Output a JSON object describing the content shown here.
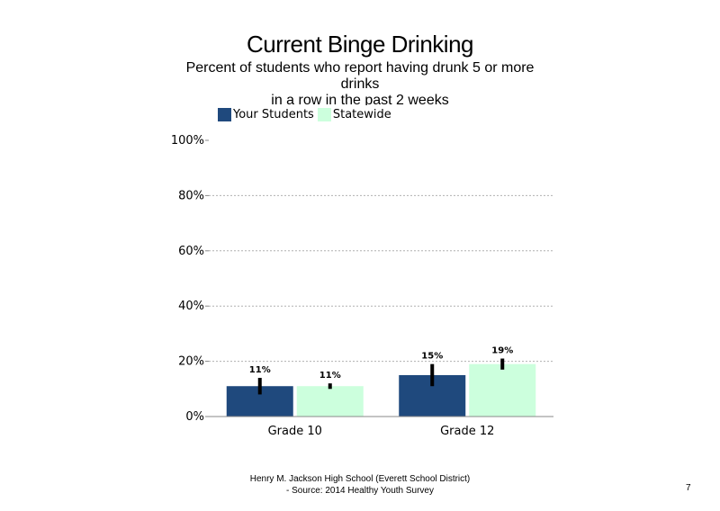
{
  "title": "Current Binge Drinking",
  "subtitle_lines": [
    "Percent of students  who report having drunk 5 or more",
    "drinks",
    "in a row in the past 2 weeks"
  ],
  "footer_lines": [
    "Henry M.  Jackson High  School (Everett School District)",
    "- Source: 2014 Healthy  Youth Survey"
  ],
  "page_number": "7",
  "chart_data": {
    "type": "bar",
    "title": "Current Binge Drinking",
    "categories": [
      "Grade 10",
      "Grade 12"
    ],
    "series": [
      {
        "name": "Your Students",
        "values": [
          11,
          15
        ],
        "labels": [
          "11%",
          "15%"
        ],
        "ci": [
          [
            8,
            14
          ],
          [
            11,
            19
          ]
        ],
        "color": "#1f497d"
      },
      {
        "name": "Statewide",
        "values": [
          11,
          19
        ],
        "labels": [
          "11%",
          "19%"
        ],
        "ci": [
          [
            10,
            12
          ],
          [
            17,
            21
          ]
        ],
        "color": "#ccffdd"
      }
    ],
    "ylim": [
      0,
      100
    ],
    "yticks": [
      0,
      20,
      40,
      60,
      80,
      100
    ],
    "ytick_labels": [
      "0%",
      "20%",
      "40%",
      "60%",
      "80%",
      "100%"
    ],
    "grid": true,
    "legend_position": "top-left"
  }
}
